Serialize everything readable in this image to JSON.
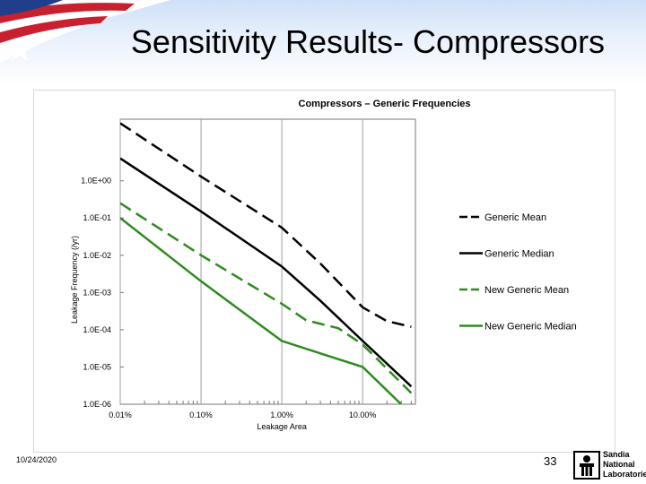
{
  "slide": {
    "title": "Sensitivity Results- Compressors",
    "date": "10/24/2020",
    "page_number": "33",
    "logo_text": [
      "Sandia",
      "National",
      "Laboratories"
    ]
  },
  "colors": {
    "mean_line": "#000000",
    "new_line": "#2e8b1e",
    "grid": "#a0a0a0"
  },
  "chart_data": {
    "type": "line",
    "title": "Compressors – Generic Frequencies",
    "xlabel": "Leakage Area",
    "ylabel": "Leakage Frequency (/yr)",
    "x_scale": "log",
    "y_scale": "log",
    "xlim": [
      0.0001,
      0.45
    ],
    "ylim": [
      1e-06,
      45
    ],
    "x_ticks": [
      {
        "value": 0.0001,
        "label": "0.01%"
      },
      {
        "value": 0.001,
        "label": "0.10%"
      },
      {
        "value": 0.01,
        "label": "1.00%"
      },
      {
        "value": 0.1,
        "label": "10.00%"
      }
    ],
    "y_ticks": [
      {
        "value": 1e-06,
        "label": "1.0E-06"
      },
      {
        "value": 1e-05,
        "label": "1.0E-05"
      },
      {
        "value": 0.0001,
        "label": "1.0E-04"
      },
      {
        "value": 0.001,
        "label": "1.0E-03"
      },
      {
        "value": 0.01,
        "label": "1.0E-02"
      },
      {
        "value": 0.1,
        "label": "1.0E-01"
      },
      {
        "value": 1,
        "label": "1.0E+00"
      }
    ],
    "grid": true,
    "legend_position": "right",
    "series": [
      {
        "name": "Generic Mean",
        "style": "dashed",
        "color": "#000000",
        "points": [
          [
            0.0001,
            35
          ],
          [
            0.001,
            1.3
          ],
          [
            0.01,
            0.055
          ],
          [
            0.03,
            0.006
          ],
          [
            0.1,
            0.0004
          ],
          [
            0.2,
            0.00017
          ],
          [
            0.4,
            0.00012
          ]
        ]
      },
      {
        "name": "Generic Median",
        "style": "solid",
        "color": "#000000",
        "points": [
          [
            0.0001,
            4
          ],
          [
            0.001,
            0.15
          ],
          [
            0.01,
            0.005
          ],
          [
            0.03,
            0.0006
          ],
          [
            0.1,
            5e-05
          ],
          [
            0.4,
            3e-06
          ]
        ]
      },
      {
        "name": "New Generic Mean",
        "style": "dashed",
        "color": "#2e8b1e",
        "points": [
          [
            0.0001,
            0.25
          ],
          [
            0.001,
            0.01
          ],
          [
            0.01,
            0.0005
          ],
          [
            0.02,
            0.00018
          ],
          [
            0.05,
            0.00011
          ],
          [
            0.1,
            4e-05
          ],
          [
            0.4,
            2e-06
          ]
        ]
      },
      {
        "name": "New Generic Median",
        "style": "solid",
        "color": "#2e8b1e",
        "points": [
          [
            0.0001,
            0.1
          ],
          [
            0.001,
            0.002
          ],
          [
            0.01,
            5e-05
          ],
          [
            0.1,
            1e-05
          ],
          [
            0.3,
            1e-06
          ]
        ]
      }
    ]
  }
}
